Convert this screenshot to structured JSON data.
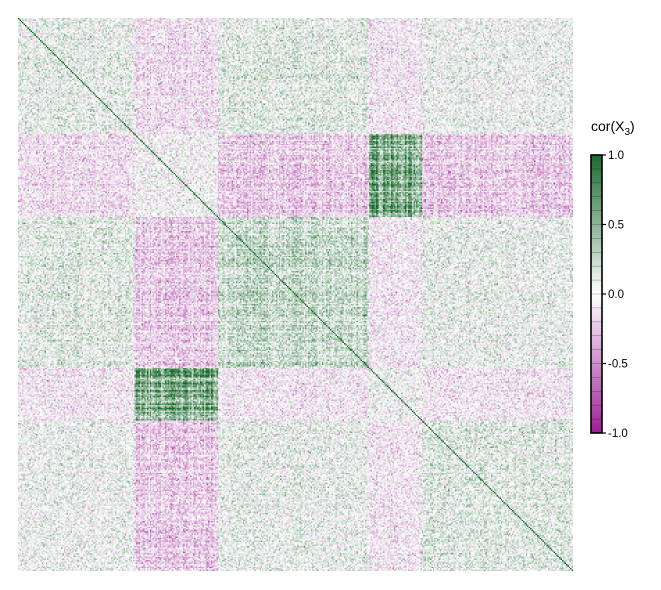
{
  "chart_data": {
    "type": "heatmap",
    "title": "",
    "xlabel": "",
    "ylabel": "",
    "n_variables": 400,
    "value_range": [
      -1.0,
      1.0
    ],
    "colorbar": {
      "title_main": "cor(X",
      "title_sub": "3",
      "title_end": ")",
      "ticks": [
        {
          "value": 1.0,
          "label": "1.0"
        },
        {
          "value": 0.5,
          "label": "0.5"
        },
        {
          "value": 0.0,
          "label": "0.0"
        },
        {
          "value": -0.5,
          "label": "-0.5"
        },
        {
          "value": -1.0,
          "label": "-1.0"
        }
      ],
      "placement": "right"
    },
    "colormap": {
      "negative": "#9e1f96",
      "mid": "#ffffff",
      "positive": "#1b6b2e"
    },
    "block_boundaries": [
      0,
      84,
      144,
      253,
      291,
      400
    ],
    "block_correlations": [
      [
        0.1,
        -0.12,
        0.12,
        -0.08,
        0.06
      ],
      [
        -0.12,
        0.02,
        -0.2,
        0.55,
        -0.2
      ],
      [
        0.12,
        -0.2,
        0.22,
        -0.08,
        0.08
      ],
      [
        -0.08,
        0.55,
        -0.08,
        0.04,
        -0.08
      ],
      [
        0.06,
        -0.2,
        0.08,
        -0.08,
        0.12
      ]
    ]
  }
}
